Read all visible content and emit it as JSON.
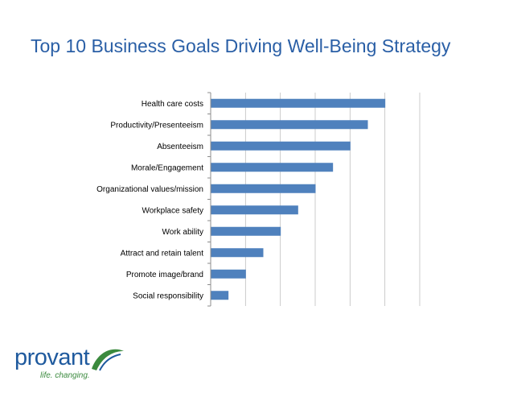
{
  "slide": {
    "title": "Top 10 Business Goals Driving Well-Being Strategy"
  },
  "logo": {
    "name": "provant",
    "tagline": "life. changing."
  },
  "colors": {
    "title": "#2a5fa6",
    "bar": "#4f81bd",
    "grid": "#bfbfbf",
    "logo_text": "#1f5a9e",
    "logo_tagline": "#3b8a3e"
  },
  "chart_data": {
    "type": "bar",
    "orientation": "horizontal",
    "categories": [
      "Health care costs",
      "Productivity/Presenteeism",
      "Absenteeism",
      "Morale/Engagement",
      "Organizational values/mission",
      "Workplace safety",
      "Work ability",
      "Attract and retain talent",
      "Promote image/brand",
      "Social responsibility"
    ],
    "values": [
      10,
      9,
      8,
      7,
      6,
      5,
      4,
      3,
      2,
      1
    ],
    "xlim": [
      0,
      12
    ],
    "grid": true,
    "legend": false,
    "title": "",
    "xlabel": "",
    "ylabel": ""
  }
}
